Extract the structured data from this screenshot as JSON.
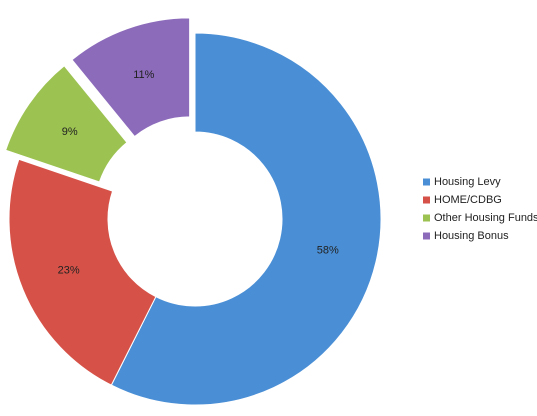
{
  "chart_data": {
    "type": "donut",
    "categories": [
      "Housing Levy",
      "HOME/CDBG",
      "Other Housing Funds",
      "Housing Bonus"
    ],
    "values": [
      58,
      23,
      9,
      11
    ],
    "value_labels": [
      "58%",
      "23%",
      "9%",
      "11%"
    ],
    "colors": [
      "#4a8fd6",
      "#d65248",
      "#9cc251",
      "#8c6bbb"
    ],
    "exploded": [
      false,
      false,
      true,
      true
    ],
    "legend": "right"
  }
}
